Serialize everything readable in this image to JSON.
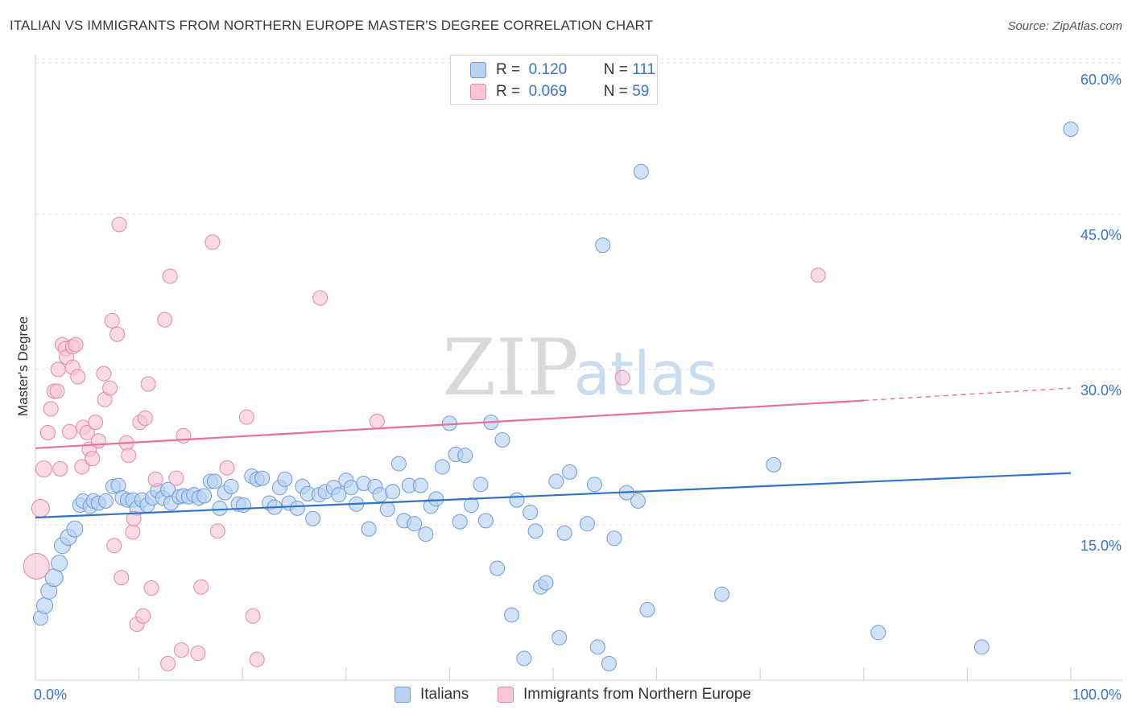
{
  "header": {
    "title": "ITALIAN VS IMMIGRANTS FROM NORTHERN EUROPE MASTER'S DEGREE CORRELATION CHART",
    "source": "Source: ZipAtlas.com"
  },
  "watermark": {
    "zip": "ZIP",
    "atlas": "atlas"
  },
  "legend": {
    "r_label": "R =",
    "n_label": "N =",
    "rows": [
      {
        "name": "Italians",
        "r": "0.120",
        "n": "111",
        "fill": "#b9d2f3",
        "stroke": "#6f9ad8"
      },
      {
        "name": "Immigrants from Northern Europe",
        "r": "0.069",
        "n": "59",
        "fill": "#f8c6d5",
        "stroke": "#e487a6"
      }
    ]
  },
  "colors": {
    "blue_line": "#2f72c9",
    "pink_line": "#e8709a",
    "axis_label": "#3a74c8",
    "grid": "#dcdcdc"
  },
  "chart_data": {
    "type": "scatter",
    "title": "ITALIAN VS IMMIGRANTS FROM NORTHERN EUROPE MASTER'S DEGREE CORRELATION CHART",
    "xlabel": "",
    "ylabel": "Master's Degree",
    "xlim": [
      0,
      100
    ],
    "ylim": [
      0,
      60
    ],
    "x_tick_labels": [
      "0.0%",
      "100.0%"
    ],
    "y_ticks": [
      15,
      30,
      45,
      60
    ],
    "y_tick_labels": [
      "15.0%",
      "30.0%",
      "45.0%",
      "60.0%"
    ],
    "grid": true,
    "series": [
      {
        "name": "Italians",
        "r": 0.12,
        "n": 111,
        "trend": {
          "x0": 0,
          "y0": 15.7,
          "x1": 100,
          "y1": 20.0
        },
        "points": [
          [
            0.5,
            6.0,
            9
          ],
          [
            0.9,
            7.2,
            10
          ],
          [
            1.3,
            8.6,
            10
          ],
          [
            1.8,
            9.9,
            11
          ],
          [
            2.3,
            11.3,
            10
          ],
          [
            2.6,
            13.0,
            10
          ],
          [
            3.2,
            13.8,
            10
          ],
          [
            3.8,
            14.6,
            10
          ],
          [
            4.3,
            16.9,
            9
          ],
          [
            4.6,
            17.3,
            9
          ],
          [
            5.3,
            16.8,
            9
          ],
          [
            5.6,
            17.3,
            9
          ],
          [
            6.1,
            17.1,
            9
          ],
          [
            6.8,
            17.3,
            9
          ],
          [
            7.5,
            18.7,
            9
          ],
          [
            8.0,
            18.8,
            9
          ],
          [
            8.4,
            17.6,
            9
          ],
          [
            8.9,
            17.4,
            9
          ],
          [
            9.4,
            17.4,
            9
          ],
          [
            9.8,
            16.6,
            9
          ],
          [
            10.3,
            17.4,
            9
          ],
          [
            10.8,
            16.9,
            9
          ],
          [
            11.3,
            17.6,
            9
          ],
          [
            11.8,
            18.3,
            9
          ],
          [
            12.3,
            17.6,
            9
          ],
          [
            12.8,
            18.4,
            9
          ],
          [
            13.1,
            17.1,
            9
          ],
          [
            13.9,
            17.7,
            9
          ],
          [
            14.3,
            17.8,
            9
          ],
          [
            14.8,
            17.7,
            9
          ],
          [
            15.3,
            17.9,
            9
          ],
          [
            15.8,
            17.6,
            9
          ],
          [
            16.3,
            17.8,
            9
          ],
          [
            16.9,
            19.2,
            9
          ],
          [
            17.3,
            19.2,
            9
          ],
          [
            17.8,
            16.6,
            9
          ],
          [
            18.3,
            18.1,
            9
          ],
          [
            18.9,
            18.7,
            9
          ],
          [
            19.6,
            17.0,
            9
          ],
          [
            20.1,
            16.9,
            9
          ],
          [
            20.9,
            19.7,
            9
          ],
          [
            21.4,
            19.4,
            9
          ],
          [
            21.9,
            19.5,
            9
          ],
          [
            22.6,
            17.1,
            9
          ],
          [
            23.1,
            16.7,
            9
          ],
          [
            23.6,
            18.6,
            9
          ],
          [
            24.1,
            19.4,
            9
          ],
          [
            24.5,
            17.1,
            9
          ],
          [
            25.3,
            16.6,
            9
          ],
          [
            25.8,
            18.7,
            9
          ],
          [
            26.3,
            18.0,
            9
          ],
          [
            26.8,
            15.6,
            9
          ],
          [
            27.4,
            17.9,
            9
          ],
          [
            28.0,
            18.2,
            9
          ],
          [
            28.8,
            18.6,
            9
          ],
          [
            29.3,
            17.9,
            9
          ],
          [
            30.0,
            19.3,
            9
          ],
          [
            30.5,
            18.6,
            9
          ],
          [
            31.0,
            17.0,
            9
          ],
          [
            31.7,
            19.0,
            9
          ],
          [
            32.2,
            14.6,
            9
          ],
          [
            32.8,
            18.7,
            9
          ],
          [
            33.3,
            17.9,
            9
          ],
          [
            34.0,
            16.5,
            9
          ],
          [
            34.5,
            18.2,
            9
          ],
          [
            35.1,
            20.9,
            9
          ],
          [
            35.6,
            15.4,
            9
          ],
          [
            36.1,
            18.8,
            9
          ],
          [
            36.6,
            15.1,
            9
          ],
          [
            37.2,
            18.8,
            9
          ],
          [
            37.7,
            14.1,
            9
          ],
          [
            38.2,
            16.8,
            9
          ],
          [
            38.7,
            17.5,
            9
          ],
          [
            39.3,
            20.6,
            9
          ],
          [
            40.0,
            24.8,
            9
          ],
          [
            40.6,
            21.8,
            9
          ],
          [
            41.0,
            15.3,
            9
          ],
          [
            41.5,
            21.7,
            9
          ],
          [
            42.1,
            16.9,
            9
          ],
          [
            43.0,
            18.9,
            9
          ],
          [
            43.5,
            15.4,
            9
          ],
          [
            44.0,
            24.9,
            9
          ],
          [
            44.6,
            10.8,
            9
          ],
          [
            45.1,
            23.2,
            9
          ],
          [
            46.0,
            6.3,
            9
          ],
          [
            46.5,
            17.4,
            9
          ],
          [
            47.2,
            2.1,
            9
          ],
          [
            47.8,
            16.2,
            9
          ],
          [
            48.3,
            14.4,
            9
          ],
          [
            48.8,
            9.0,
            9
          ],
          [
            49.3,
            9.4,
            9
          ],
          [
            50.3,
            19.2,
            9
          ],
          [
            50.6,
            4.1,
            9
          ],
          [
            51.1,
            14.2,
            9
          ],
          [
            51.6,
            20.1,
            9
          ],
          [
            53.3,
            15.1,
            9
          ],
          [
            54.0,
            18.9,
            9
          ],
          [
            54.3,
            3.2,
            9
          ],
          [
            54.8,
            42.0,
            9
          ],
          [
            55.4,
            1.6,
            9
          ],
          [
            55.9,
            13.7,
            9
          ],
          [
            57.1,
            18.1,
            9
          ],
          [
            58.2,
            17.3,
            9
          ],
          [
            58.5,
            49.1,
            9
          ],
          [
            59.1,
            6.8,
            9
          ],
          [
            66.3,
            8.3,
            9
          ],
          [
            71.3,
            20.8,
            9
          ],
          [
            81.4,
            4.6,
            9
          ],
          [
            91.4,
            3.2,
            9
          ],
          [
            100.0,
            53.2,
            9
          ]
        ]
      },
      {
        "name": "Immigrants from Northern Europe",
        "r": 0.069,
        "n": 59,
        "trend": {
          "x0": 0,
          "y0": 22.4,
          "x1": 80,
          "y1": 27.0,
          "dash_to_x": 100,
          "dash_to_y": 28.2
        },
        "points": [
          [
            0.1,
            11.0,
            16
          ],
          [
            0.5,
            16.6,
            11
          ],
          [
            0.8,
            20.4,
            10
          ],
          [
            1.2,
            23.9,
            9
          ],
          [
            1.5,
            26.2,
            9
          ],
          [
            1.8,
            27.9,
            9
          ],
          [
            2.1,
            27.9,
            9
          ],
          [
            2.2,
            30.0,
            9
          ],
          [
            2.4,
            20.4,
            9
          ],
          [
            2.6,
            32.4,
            9
          ],
          [
            2.9,
            32.0,
            9
          ],
          [
            3.0,
            31.2,
            9
          ],
          [
            3.3,
            24.0,
            9
          ],
          [
            3.6,
            32.2,
            9
          ],
          [
            3.6,
            30.2,
            9
          ],
          [
            3.9,
            32.4,
            9
          ],
          [
            4.1,
            29.3,
            9
          ],
          [
            4.5,
            20.6,
            9
          ],
          [
            4.6,
            24.4,
            9
          ],
          [
            5.0,
            23.9,
            9
          ],
          [
            5.2,
            22.3,
            9
          ],
          [
            5.5,
            21.4,
            9
          ],
          [
            5.8,
            24.9,
            9
          ],
          [
            6.1,
            23.1,
            9
          ],
          [
            6.6,
            29.6,
            9
          ],
          [
            6.7,
            27.1,
            9
          ],
          [
            7.2,
            28.2,
            9
          ],
          [
            7.4,
            34.7,
            9
          ],
          [
            7.6,
            13.0,
            9
          ],
          [
            7.9,
            33.4,
            9
          ],
          [
            8.1,
            44.0,
            9
          ],
          [
            8.3,
            9.9,
            9
          ],
          [
            8.8,
            22.9,
            9
          ],
          [
            9.0,
            21.7,
            9
          ],
          [
            9.4,
            14.3,
            9
          ],
          [
            9.5,
            15.6,
            9
          ],
          [
            9.8,
            5.4,
            9
          ],
          [
            10.1,
            24.9,
            9
          ],
          [
            10.4,
            6.2,
            9
          ],
          [
            10.6,
            25.3,
            9
          ],
          [
            10.9,
            28.6,
            9
          ],
          [
            11.2,
            8.9,
            9
          ],
          [
            11.6,
            19.4,
            9
          ],
          [
            12.5,
            34.8,
            9
          ],
          [
            12.8,
            1.6,
            9
          ],
          [
            13.0,
            39.0,
            9
          ],
          [
            13.6,
            19.5,
            9
          ],
          [
            14.1,
            2.9,
            9
          ],
          [
            14.3,
            23.6,
            9
          ],
          [
            15.7,
            2.6,
            9
          ],
          [
            16.0,
            9.0,
            9
          ],
          [
            17.1,
            42.3,
            9
          ],
          [
            17.6,
            14.4,
            9
          ],
          [
            18.5,
            20.5,
            9
          ],
          [
            20.4,
            25.4,
            9
          ],
          [
            21.0,
            6.2,
            9
          ],
          [
            21.4,
            2.0,
            9
          ],
          [
            27.5,
            36.9,
            9
          ],
          [
            33.0,
            25.0,
            9
          ],
          [
            56.7,
            29.2,
            9
          ],
          [
            75.6,
            39.1,
            9
          ]
        ]
      }
    ]
  }
}
